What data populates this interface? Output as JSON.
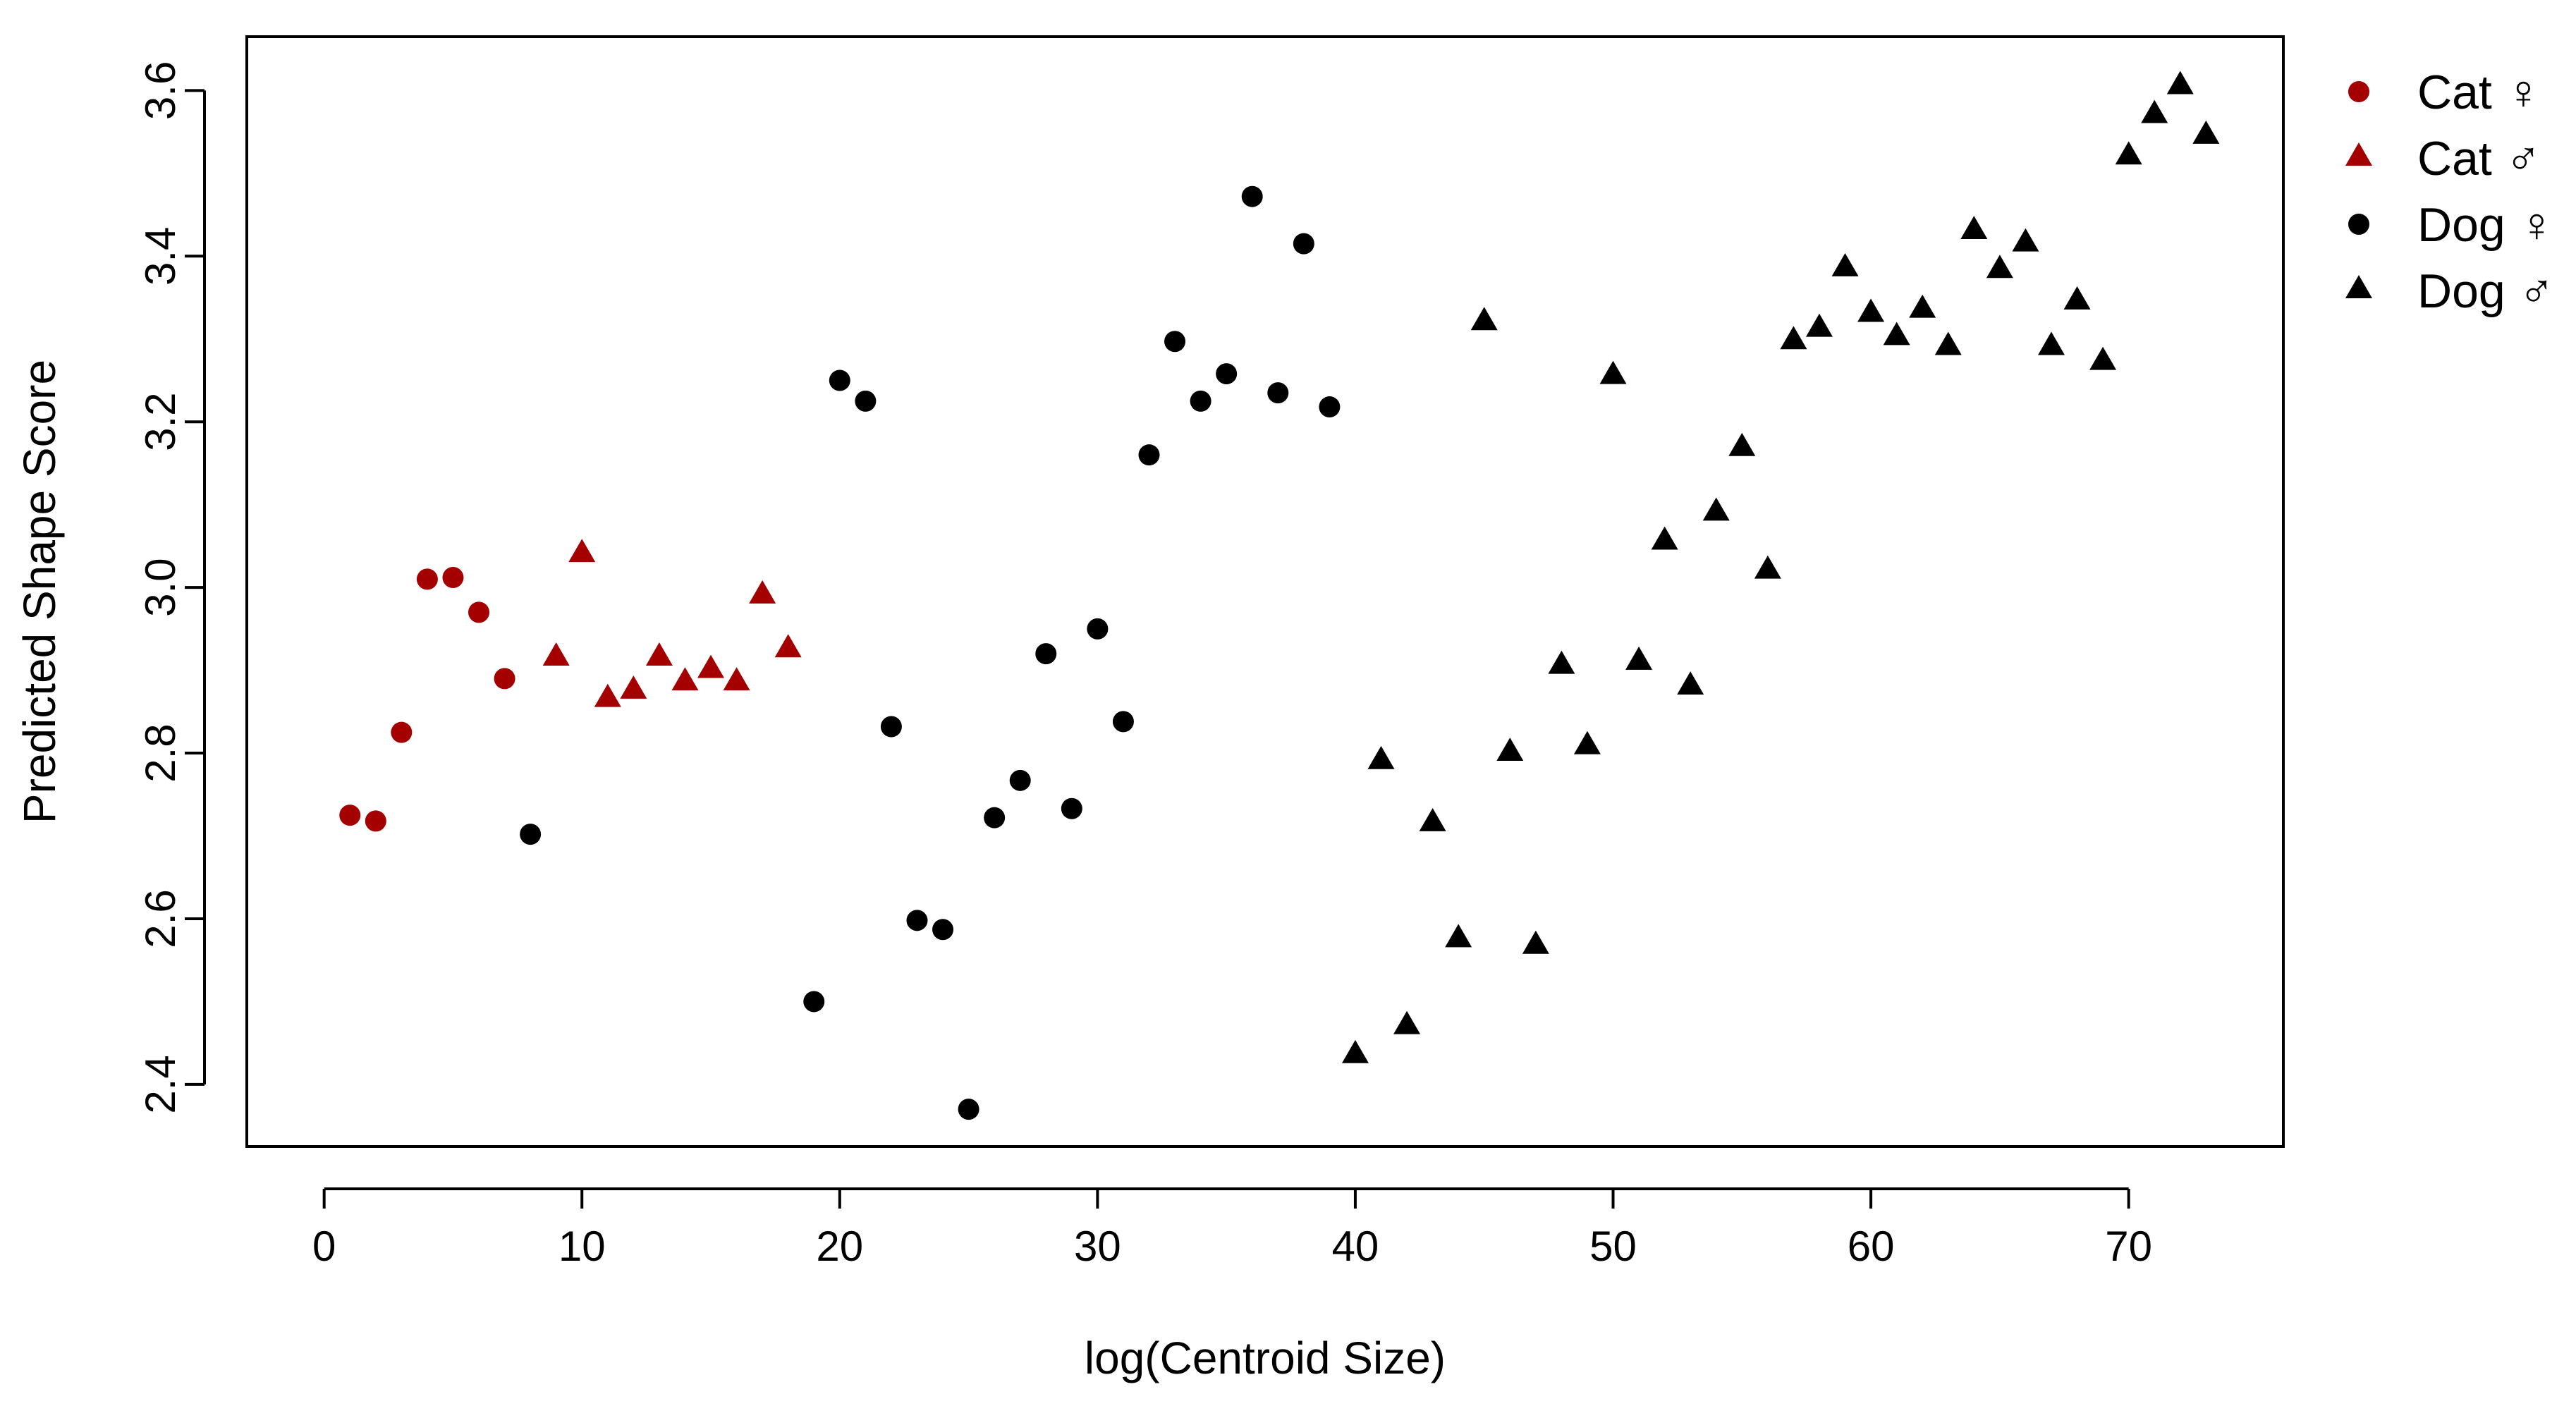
{
  "chart_data": {
    "type": "scatter",
    "xlabel": "log(Centroid Size)",
    "ylabel": "Predicted Shape Score",
    "xlim": [
      -3,
      76
    ],
    "ylim": [
      2.325,
      3.665
    ],
    "x_ticks": [
      0,
      10,
      20,
      30,
      40,
      50,
      60,
      70
    ],
    "y_ticks": [
      2.4,
      2.6,
      2.8,
      3.0,
      3.2,
      3.4,
      3.6
    ],
    "x_tick_labels": [
      "0",
      "10",
      "20",
      "30",
      "40",
      "50",
      "60",
      "70"
    ],
    "y_tick_labels": [
      "2.4",
      "2.6",
      "2.8",
      "3.0",
      "3.2",
      "3.4",
      "3.6"
    ],
    "grid": false,
    "legend_position": "top-right outside",
    "series": [
      {
        "name": "Cat ♀",
        "marker": "circle",
        "color": "#A50000",
        "points": [
          [
            1,
            2.725
          ],
          [
            2,
            2.718
          ],
          [
            3,
            2.825
          ],
          [
            4,
            3.01
          ],
          [
            5,
            3.012
          ],
          [
            6,
            2.97
          ],
          [
            7,
            2.89
          ]
        ]
      },
      {
        "name": "Cat ♂",
        "marker": "triangle",
        "color": "#A50000",
        "points": [
          [
            9,
            2.915
          ],
          [
            10,
            3.04
          ],
          [
            11,
            2.865
          ],
          [
            12,
            2.875
          ],
          [
            13,
            2.915
          ],
          [
            14,
            2.885
          ],
          [
            15,
            2.9
          ],
          [
            16,
            2.885
          ],
          [
            17,
            2.99
          ],
          [
            18,
            2.925
          ]
        ]
      },
      {
        "name": "Dog ♀",
        "marker": "circle",
        "color": "#000000",
        "points": [
          [
            8,
            2.702
          ],
          [
            19,
            2.5
          ],
          [
            20,
            3.25
          ],
          [
            21,
            3.225
          ],
          [
            22,
            2.832
          ],
          [
            23,
            2.598
          ],
          [
            24,
            2.587
          ],
          [
            25,
            2.37
          ],
          [
            26,
            2.722
          ],
          [
            27,
            2.767
          ],
          [
            28,
            2.92
          ],
          [
            29,
            2.733
          ],
          [
            30,
            2.95
          ],
          [
            31,
            2.838
          ],
          [
            32,
            3.16
          ],
          [
            33,
            3.297
          ],
          [
            34,
            3.225
          ],
          [
            35,
            3.258
          ],
          [
            36,
            3.472
          ],
          [
            37,
            3.235
          ],
          [
            38,
            3.415
          ],
          [
            39,
            3.218
          ]
        ]
      },
      {
        "name": "Dog ♂",
        "marker": "triangle",
        "color": "#000000",
        "points": [
          [
            40,
            2.435
          ],
          [
            41,
            2.79
          ],
          [
            42,
            2.47
          ],
          [
            43,
            2.715
          ],
          [
            44,
            2.575
          ],
          [
            45,
            3.32
          ],
          [
            46,
            2.8
          ],
          [
            47,
            2.567
          ],
          [
            48,
            2.905
          ],
          [
            49,
            2.808
          ],
          [
            50,
            3.255
          ],
          [
            51,
            2.91
          ],
          [
            52,
            3.055
          ],
          [
            53,
            2.88
          ],
          [
            54,
            3.09
          ],
          [
            55,
            3.168
          ],
          [
            56,
            3.02
          ],
          [
            57,
            3.297
          ],
          [
            58,
            3.312
          ],
          [
            59,
            3.385
          ],
          [
            60,
            3.33
          ],
          [
            61,
            3.302
          ],
          [
            62,
            3.335
          ],
          [
            63,
            3.29
          ],
          [
            64,
            3.43
          ],
          [
            65,
            3.383
          ],
          [
            66,
            3.415
          ],
          [
            67,
            3.29
          ],
          [
            68,
            3.345
          ],
          [
            69,
            3.272
          ],
          [
            70,
            3.52
          ],
          [
            71,
            3.57
          ],
          [
            72,
            3.605
          ],
          [
            73,
            3.545
          ]
        ]
      }
    ]
  }
}
